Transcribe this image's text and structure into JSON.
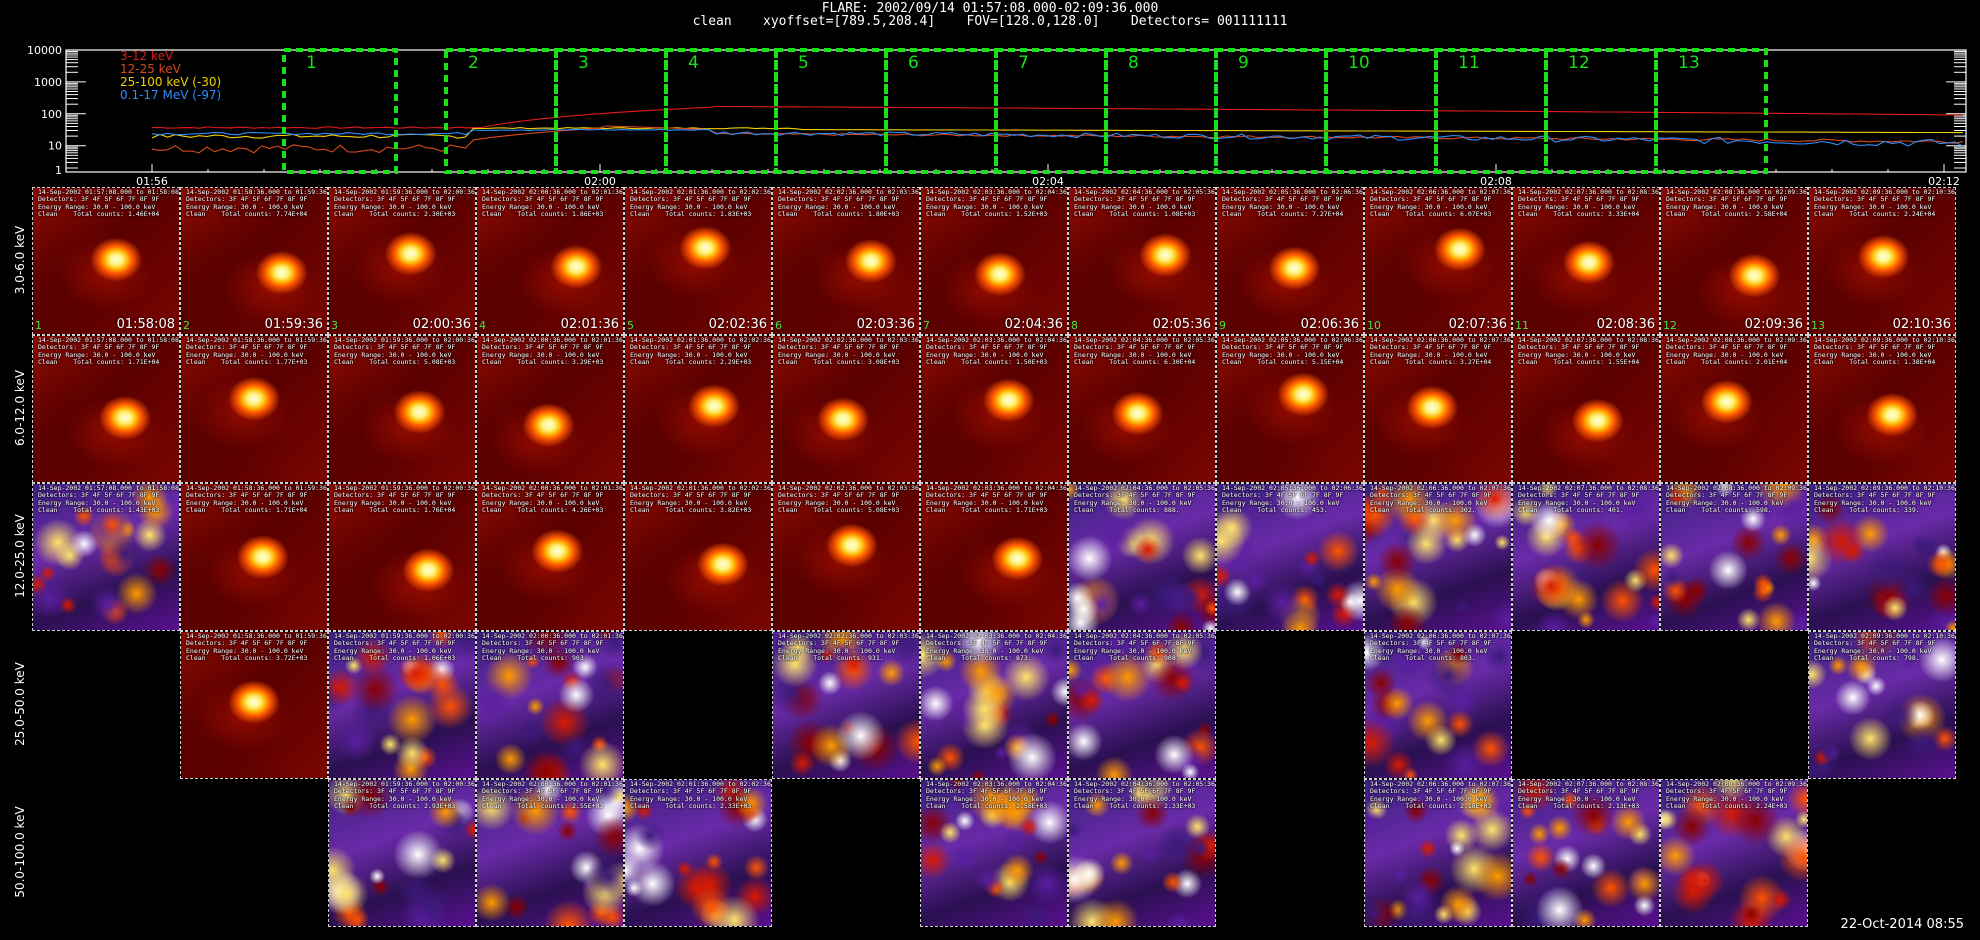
{
  "header": {
    "title": "FLARE: 2002/09/14 01:57:08.000-02:09:36.000",
    "subtitle": "clean    xyoffset=[789.5,208.4]    FOV=[128.0,128.0]    Detectors= 001111111"
  },
  "lightcurve": {
    "y_ticks": [
      "10000",
      "1000",
      "100",
      "10",
      "1"
    ],
    "x_ticks": [
      "01:56",
      "02:00",
      "02:04",
      "02:08",
      "02:12"
    ],
    "legend": [
      {
        "label": "3-12 keV",
        "color": "#e01b1b"
      },
      {
        "label": "12-25 keV",
        "color": "#d94a1a"
      },
      {
        "label": "25-100 keV (-30)",
        "color": "#f0d000"
      },
      {
        "label": "0.1-17 MeV (-97)",
        "color": "#2f8cff"
      }
    ],
    "interval_labels": [
      "1",
      "2",
      "3",
      "4",
      "5",
      "6",
      "7",
      "8",
      "9",
      "10",
      "11",
      "12",
      "13"
    ],
    "interval_color": "#19e019"
  },
  "rows": [
    {
      "label": "3.0-6.0 keV"
    },
    {
      "label": "6.0-12.0 keV"
    },
    {
      "label": "12.0-25.0 keV"
    },
    {
      "label": "25.0-50.0 keV"
    },
    {
      "label": "50.0-100.0 keV"
    }
  ],
  "tiles": [
    {
      "row": 0,
      "col": 0,
      "type": "blob",
      "start": "01:57:08.000",
      "end": "01:58:08",
      "counts": "1.46E+04",
      "time": "01:58:08",
      "num": "1"
    },
    {
      "row": 0,
      "col": 1,
      "type": "blob",
      "start": "01:58:36.000",
      "end": "01:59:36",
      "counts": "7.74E+04",
      "time": "01:59:36",
      "num": "2"
    },
    {
      "row": 0,
      "col": 2,
      "type": "blob",
      "start": "01:59:36.000",
      "end": "02:00:36",
      "counts": "2.30E+03",
      "time": "02:00:36",
      "num": "3"
    },
    {
      "row": 0,
      "col": 3,
      "type": "blob",
      "start": "02:00:36.000",
      "end": "02:01:36",
      "counts": "1.86E+03",
      "time": "02:01:36",
      "num": "4"
    },
    {
      "row": 0,
      "col": 4,
      "type": "blob",
      "start": "02:01:36.000",
      "end": "02:02:36",
      "counts": "1.83E+03",
      "time": "02:02:36",
      "num": "5"
    },
    {
      "row": 0,
      "col": 5,
      "type": "blob",
      "start": "02:02:36.000",
      "end": "02:03:36",
      "counts": "1.80E+03",
      "time": "02:03:36",
      "num": "6"
    },
    {
      "row": 0,
      "col": 6,
      "type": "blob",
      "start": "02:03:36.000",
      "end": "02:04:36",
      "counts": "1.52E+03",
      "time": "02:04:36",
      "num": "7"
    },
    {
      "row": 0,
      "col": 7,
      "type": "blob",
      "start": "02:04:36.000",
      "end": "02:05:36",
      "counts": "1.08E+03",
      "time": "02:05:36",
      "num": "8"
    },
    {
      "row": 0,
      "col": 8,
      "type": "blob",
      "start": "02:05:36.000",
      "end": "02:06:36",
      "counts": "7.27E+04",
      "time": "02:06:36",
      "num": "9"
    },
    {
      "row": 0,
      "col": 9,
      "type": "blob",
      "start": "02:06:36.000",
      "end": "02:07:36",
      "counts": "6.07E+03",
      "time": "02:07:36",
      "num": "10"
    },
    {
      "row": 0,
      "col": 10,
      "type": "blob",
      "start": "02:07:36.000",
      "end": "02:08:36",
      "counts": "3.33E+04",
      "time": "02:08:36",
      "num": "11"
    },
    {
      "row": 0,
      "col": 11,
      "type": "blob",
      "start": "02:08:36.000",
      "end": "02:09:36",
      "counts": "2.58E+04",
      "time": "02:09:36",
      "num": "12"
    },
    {
      "row": 0,
      "col": 12,
      "type": "blob",
      "start": "02:09:36.000",
      "end": "02:10:36",
      "counts": "2.24E+04",
      "time": "02:10:36",
      "num": "13"
    },
    {
      "row": 1,
      "col": 0,
      "type": "blob",
      "start": "01:57:08.000",
      "end": "01:58:08",
      "counts": "1.71E+04"
    },
    {
      "row": 1,
      "col": 1,
      "type": "blob",
      "start": "01:58:36.000",
      "end": "01:59:36",
      "counts": "1.77E+03"
    },
    {
      "row": 1,
      "col": 2,
      "type": "blob",
      "start": "01:59:36.000",
      "end": "02:00:36",
      "counts": "5.08E+03"
    },
    {
      "row": 1,
      "col": 3,
      "type": "blob",
      "start": "02:00:36.000",
      "end": "02:01:36",
      "counts": "3.29E+03"
    },
    {
      "row": 1,
      "col": 4,
      "type": "blob",
      "start": "02:01:36.000",
      "end": "02:02:36",
      "counts": "2.29E+03"
    },
    {
      "row": 1,
      "col": 5,
      "type": "blob",
      "start": "02:02:36.000",
      "end": "02:03:36",
      "counts": "3.08E+03"
    },
    {
      "row": 1,
      "col": 6,
      "type": "blob",
      "start": "02:03:36.000",
      "end": "02:04:36",
      "counts": "1.50E+03"
    },
    {
      "row": 1,
      "col": 7,
      "type": "blob",
      "start": "02:04:36.000",
      "end": "02:05:36",
      "counts": "6.30E+04"
    },
    {
      "row": 1,
      "col": 8,
      "type": "blob",
      "start": "02:05:36.000",
      "end": "02:06:36",
      "counts": "5.15E+04"
    },
    {
      "row": 1,
      "col": 9,
      "type": "blob",
      "start": "02:06:36.000",
      "end": "02:07:36",
      "counts": "3.27E+04"
    },
    {
      "row": 1,
      "col": 10,
      "type": "blob",
      "start": "02:07:36.000",
      "end": "02:08:36",
      "counts": "1.55E+04"
    },
    {
      "row": 1,
      "col": 11,
      "type": "blob",
      "start": "02:08:36.000",
      "end": "02:09:36",
      "counts": "2.01E+04"
    },
    {
      "row": 1,
      "col": 12,
      "type": "blob",
      "start": "02:09:36.000",
      "end": "02:10:36",
      "counts": "1.38E+04"
    },
    {
      "row": 2,
      "col": 0,
      "type": "noise",
      "start": "01:57:08.000",
      "end": "01:58:08",
      "counts": "1.43E+03"
    },
    {
      "row": 2,
      "col": 1,
      "type": "blob",
      "start": "01:58:36.000",
      "end": "01:59:36",
      "counts": "1.71E+04"
    },
    {
      "row": 2,
      "col": 2,
      "type": "blob",
      "start": "01:59:36.000",
      "end": "02:00:36",
      "counts": "1.76E+04"
    },
    {
      "row": 2,
      "col": 3,
      "type": "blob",
      "start": "02:00:36.000",
      "end": "02:01:36",
      "counts": "4.26E+03"
    },
    {
      "row": 2,
      "col": 4,
      "type": "blob",
      "start": "02:01:36.000",
      "end": "02:02:36",
      "counts": "3.82E+03"
    },
    {
      "row": 2,
      "col": 5,
      "type": "blob",
      "start": "02:02:36.000",
      "end": "02:03:36",
      "counts": "5.08E+03"
    },
    {
      "row": 2,
      "col": 6,
      "type": "blob",
      "start": "02:03:36.000",
      "end": "02:04:36",
      "counts": "1.71E+03"
    },
    {
      "row": 2,
      "col": 7,
      "type": "noise",
      "start": "02:04:36.000",
      "end": "02:05:36",
      "counts": "888."
    },
    {
      "row": 2,
      "col": 8,
      "type": "noise",
      "start": "02:05:36.000",
      "end": "02:06:36",
      "counts": "453."
    },
    {
      "row": 2,
      "col": 9,
      "type": "noise",
      "start": "02:06:36.000",
      "end": "02:07:36",
      "counts": "302."
    },
    {
      "row": 2,
      "col": 10,
      "type": "noise",
      "start": "02:07:36.000",
      "end": "02:08:36",
      "counts": "401."
    },
    {
      "row": 2,
      "col": 11,
      "type": "noise",
      "start": "02:08:36.000",
      "end": "02:09:36",
      "counts": "598."
    },
    {
      "row": 2,
      "col": 12,
      "type": "noise",
      "start": "02:09:36.000",
      "end": "02:10:36",
      "counts": "339."
    },
    {
      "row": 3,
      "col": 1,
      "type": "blob",
      "start": "01:58:36.000",
      "end": "01:59:36",
      "counts": "3.72E+03"
    },
    {
      "row": 3,
      "col": 2,
      "type": "noise",
      "start": "01:59:36.000",
      "end": "02:00:36",
      "counts": "1.06E+03"
    },
    {
      "row": 3,
      "col": 3,
      "type": "noise",
      "start": "02:00:36.000",
      "end": "02:01:36",
      "counts": "903."
    },
    {
      "row": 3,
      "col": 5,
      "type": "noise",
      "start": "02:02:36.000",
      "end": "02:03:36",
      "counts": "931."
    },
    {
      "row": 3,
      "col": 6,
      "type": "noise",
      "start": "02:03:36.000",
      "end": "02:04:36",
      "counts": "873."
    },
    {
      "row": 3,
      "col": 7,
      "type": "noise",
      "start": "02:04:36.000",
      "end": "02:05:36",
      "counts": "908."
    },
    {
      "row": 3,
      "col": 9,
      "type": "noise",
      "start": "02:06:36.000",
      "end": "02:07:36",
      "counts": "803."
    },
    {
      "row": 3,
      "col": 12,
      "type": "noise",
      "start": "02:09:36.000",
      "end": "02:10:36",
      "counts": "798."
    },
    {
      "row": 4,
      "col": 2,
      "type": "noise",
      "start": "01:59:36.000",
      "end": "02:00:36",
      "counts": "2.93E+03"
    },
    {
      "row": 4,
      "col": 3,
      "type": "noise",
      "start": "02:00:36.000",
      "end": "02:01:36",
      "counts": "2.55E+03"
    },
    {
      "row": 4,
      "col": 4,
      "type": "noise",
      "start": "02:01:36.000",
      "end": "02:02:36",
      "counts": "2.33E+03"
    },
    {
      "row": 4,
      "col": 6,
      "type": "noise",
      "start": "02:03:36.000",
      "end": "02:04:36",
      "counts": "2.58E+03"
    },
    {
      "row": 4,
      "col": 7,
      "type": "noise",
      "start": "02:04:36.000",
      "end": "02:05:36",
      "counts": "2.33E+03"
    },
    {
      "row": 4,
      "col": 9,
      "type": "noise",
      "start": "02:06:36.000",
      "end": "02:07:36",
      "counts": "2.18E+03"
    },
    {
      "row": 4,
      "col": 10,
      "type": "noise",
      "start": "02:07:36.000",
      "end": "02:08:36",
      "counts": "2.13E+03"
    },
    {
      "row": 4,
      "col": 11,
      "type": "noise",
      "start": "02:08:36.000",
      "end": "02:09:36",
      "counts": "2.24E+03"
    }
  ],
  "tile_meta": {
    "date": "14-Sep-2002",
    "detectors": "Detectors: 3F 4F 5F 6F 7F 8F 9F",
    "energy": "Energy Range: 30.0 - 100.0 keV",
    "clean_label": "Clean    Total counts:"
  },
  "footer": {
    "timestamp": "22-Oct-2014 08:55"
  }
}
